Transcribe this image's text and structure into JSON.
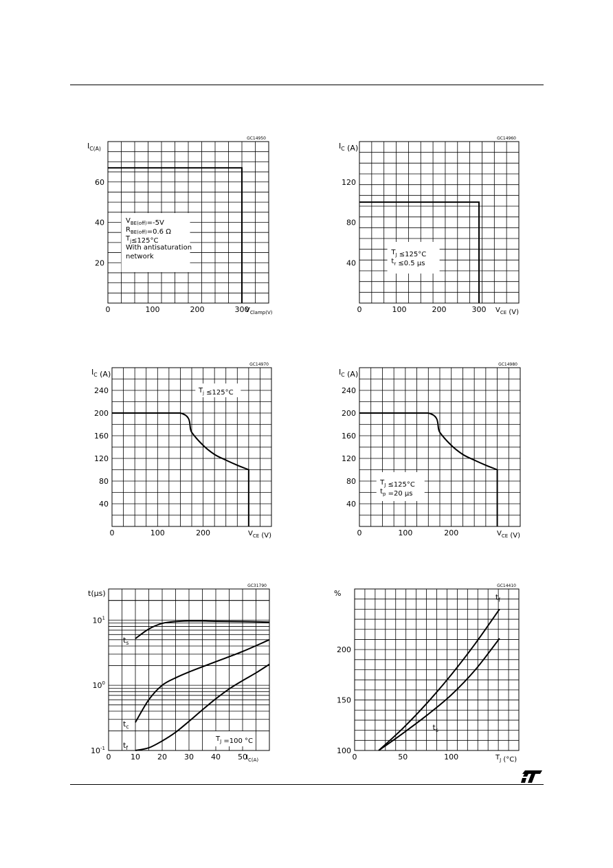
{
  "chart_data": [
    {
      "id": "chart1",
      "type": "line",
      "code": "GC14950",
      "ylabel": "I_C(A)",
      "xlabel": "V_Clamp(V)",
      "xlim": [
        0,
        360
      ],
      "ylim": [
        0,
        80
      ],
      "xticks": [
        "0",
        "100",
        "200",
        "300"
      ],
      "yticks": [
        "20",
        "40",
        "60"
      ],
      "grid": true,
      "series": [
        {
          "x": [
            0,
            300,
            300
          ],
          "y": [
            67,
            67,
            0
          ]
        }
      ],
      "annotations": [
        "V_BE(off)=-5V",
        "R_BE(off)=0.6 Ω",
        "T_j≤125°C",
        "With antisaturation",
        "network"
      ]
    },
    {
      "id": "chart2",
      "type": "line",
      "code": "GC14960",
      "ylabel": "I_C (A)",
      "xlabel": "V_CE (V)",
      "xlim": [
        0,
        400
      ],
      "ylim": [
        0,
        160
      ],
      "xticks": [
        "0",
        "100",
        "200",
        "300"
      ],
      "yticks": [
        "40",
        "80",
        "120"
      ],
      "grid": true,
      "series": [
        {
          "x": [
            0,
            300,
            300
          ],
          "y": [
            100,
            100,
            0
          ]
        }
      ],
      "annotations": [
        "T_J ≤125°C",
        "t_r ≤0.5 μs"
      ]
    },
    {
      "id": "chart3",
      "type": "line",
      "code": "GC14970",
      "ylabel": "I_C (A)",
      "xlabel": "V_CE (V)",
      "xlim": [
        0,
        350
      ],
      "ylim": [
        0,
        280
      ],
      "xticks": [
        "0",
        "100",
        "200"
      ],
      "yticks": [
        "40",
        "80",
        "120",
        "160",
        "200",
        "240"
      ],
      "grid": true,
      "series": [
        {
          "x": [
            0,
            150,
            175,
            200,
            225,
            250,
            275,
            300,
            300
          ],
          "y": [
            200,
            200,
            166,
            143,
            127,
            117,
            108,
            100,
            0
          ]
        }
      ],
      "annotations": [
        "T_j ≤125°C"
      ]
    },
    {
      "id": "chart4",
      "type": "line",
      "code": "GC14980",
      "ylabel": "I_C (A)",
      "xlabel": "V_CE (V)",
      "xlim": [
        0,
        350
      ],
      "ylim": [
        0,
        280
      ],
      "xticks": [
        "0",
        "100",
        "200"
      ],
      "yticks": [
        "40",
        "80",
        "120",
        "160",
        "200",
        "240"
      ],
      "grid": true,
      "series": [
        {
          "x": [
            0,
            150,
            175,
            200,
            225,
            250,
            275,
            300,
            300
          ],
          "y": [
            200,
            200,
            166,
            143,
            127,
            117,
            108,
            100,
            0
          ]
        }
      ],
      "annotations": [
        "T_J ≤125°C",
        "t_p =20 μs"
      ]
    },
    {
      "id": "chart5",
      "type": "line",
      "code": "GC31790",
      "ylabel": "t(μs)",
      "xlabel": "I_C(A)",
      "scale_y": "log",
      "xlim": [
        0,
        60
      ],
      "ylim": [
        0.1,
        30
      ],
      "xticks": [
        "0",
        "10",
        "20",
        "30",
        "40",
        "50"
      ],
      "yticks": [
        "10^-1",
        "10^0",
        "10^1"
      ],
      "grid": true,
      "series": [
        {
          "name": "t_s",
          "x": [
            10,
            15,
            20,
            25,
            30,
            35,
            40,
            50,
            60
          ],
          "y": [
            5.2,
            7.3,
            8.9,
            9.5,
            9.7,
            9.7,
            9.6,
            9.5,
            9.3
          ]
        },
        {
          "name": "t_c",
          "x": [
            10,
            15,
            20,
            25,
            30,
            40,
            50,
            60
          ],
          "y": [
            0.27,
            0.6,
            1.0,
            1.3,
            1.6,
            2.3,
            3.3,
            5.0
          ]
        },
        {
          "name": "t_f",
          "x": [
            10,
            15,
            20,
            25,
            30,
            35,
            40,
            45,
            50,
            55,
            60
          ],
          "y": [
            0.1,
            0.11,
            0.14,
            0.19,
            0.28,
            0.42,
            0.62,
            0.88,
            1.18,
            1.55,
            2.1
          ]
        }
      ],
      "annotations": [
        "T_J =100 °C"
      ]
    },
    {
      "id": "chart6",
      "type": "line",
      "code": "GC14410",
      "ylabel": "%",
      "xlabel": "T_J (°C)",
      "xlim": [
        0,
        170
      ],
      "ylim": [
        100,
        260
      ],
      "xticks": [
        "0",
        "50",
        "100"
      ],
      "yticks": [
        "100",
        "150",
        "200"
      ],
      "grid": true,
      "series": [
        {
          "name": "t_f",
          "x": [
            25,
            50,
            75,
            100,
            125,
            150
          ],
          "y": [
            100,
            122,
            147,
            175,
            206,
            240
          ]
        },
        {
          "name": "t_s",
          "x": [
            25,
            50,
            75,
            100,
            125,
            150
          ],
          "y": [
            100,
            117,
            135,
            155,
            180,
            211
          ]
        }
      ]
    }
  ]
}
